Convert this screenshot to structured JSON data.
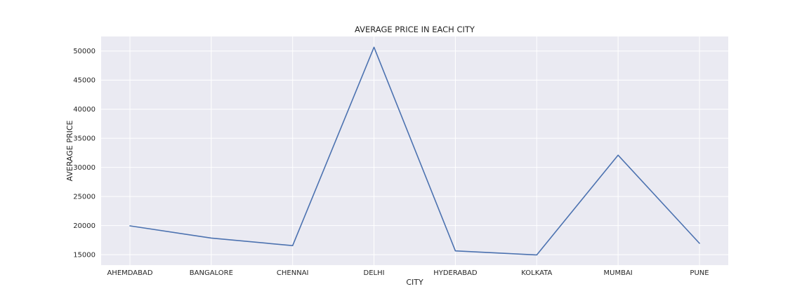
{
  "chart_data": {
    "type": "line",
    "title": "AVERAGE PRICE IN EACH CITY",
    "xlabel": "CITY",
    "ylabel": "AVERAGE PRICE",
    "categories": [
      "AHEMDABAD",
      "BANGALORE",
      "CHENNAI",
      "DELHI",
      "HYDERABAD",
      "KOLKATA",
      "MUMBAI",
      "PUNE"
    ],
    "series": [
      {
        "values": [
          19950,
          17850,
          16550,
          50650,
          15650,
          14950,
          32100,
          16950
        ],
        "color": "#4c72b0"
      }
    ],
    "yticks": [
      15000,
      20000,
      25000,
      30000,
      35000,
      40000,
      45000,
      50000
    ],
    "ytick_labels": [
      "15000",
      "20000",
      "25000",
      "30000",
      "35000",
      "40000",
      "45000",
      "50000"
    ],
    "ylim": [
      13200,
      52500
    ],
    "grid": true,
    "legend": false,
    "style": "seaborn-darkgrid"
  }
}
